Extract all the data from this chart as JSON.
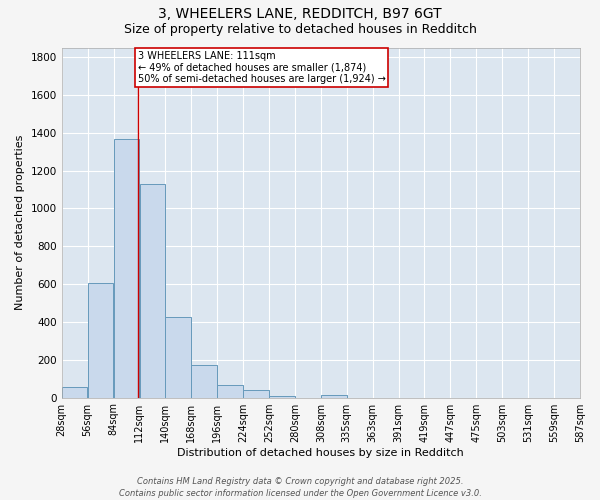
{
  "title_line1": "3, WHEELERS LANE, REDDITCH, B97 6GT",
  "title_line2": "Size of property relative to detached houses in Redditch",
  "xlabel": "Distribution of detached houses by size in Redditch",
  "ylabel": "Number of detached properties",
  "bar_left_edges": [
    28,
    56,
    84,
    112,
    140,
    168,
    196,
    224,
    252,
    280,
    308,
    336,
    364,
    392,
    420,
    448,
    476,
    504,
    532,
    560
  ],
  "bar_heights": [
    55,
    605,
    1365,
    1130,
    425,
    170,
    65,
    38,
    10,
    0,
    15,
    0,
    0,
    0,
    0,
    0,
    0,
    0,
    0,
    0
  ],
  "bin_width": 28,
  "bar_facecolor": "#c9d9ec",
  "bar_edgecolor": "#6699bb",
  "vline_color": "#cc0000",
  "vline_x": 111,
  "annotation_text": "3 WHEELERS LANE: 111sqm\n← 49% of detached houses are smaller (1,874)\n50% of semi-detached houses are larger (1,924) →",
  "annotation_box_edgecolor": "#cc0000",
  "annotation_box_facecolor": "#ffffff",
  "ylim": [
    0,
    1850
  ],
  "yticks": [
    0,
    200,
    400,
    600,
    800,
    1000,
    1200,
    1400,
    1600,
    1800
  ],
  "x_tick_labels": [
    "28sqm",
    "56sqm",
    "84sqm",
    "112sqm",
    "140sqm",
    "168sqm",
    "196sqm",
    "224sqm",
    "252sqm",
    "280sqm",
    "308sqm",
    "335sqm",
    "363sqm",
    "391sqm",
    "419sqm",
    "447sqm",
    "475sqm",
    "503sqm",
    "531sqm",
    "559sqm",
    "587sqm"
  ],
  "background_color": "#dce6f0",
  "fig_background_color": "#f5f5f5",
  "grid_color": "#ffffff",
  "footer_text": "Contains HM Land Registry data © Crown copyright and database right 2025.\nContains public sector information licensed under the Open Government Licence v3.0.",
  "title_fontsize": 10,
  "subtitle_fontsize": 9,
  "tick_fontsize": 7,
  "ylabel_fontsize": 8,
  "xlabel_fontsize": 8,
  "footer_fontsize": 6,
  "annotation_fontsize": 7
}
